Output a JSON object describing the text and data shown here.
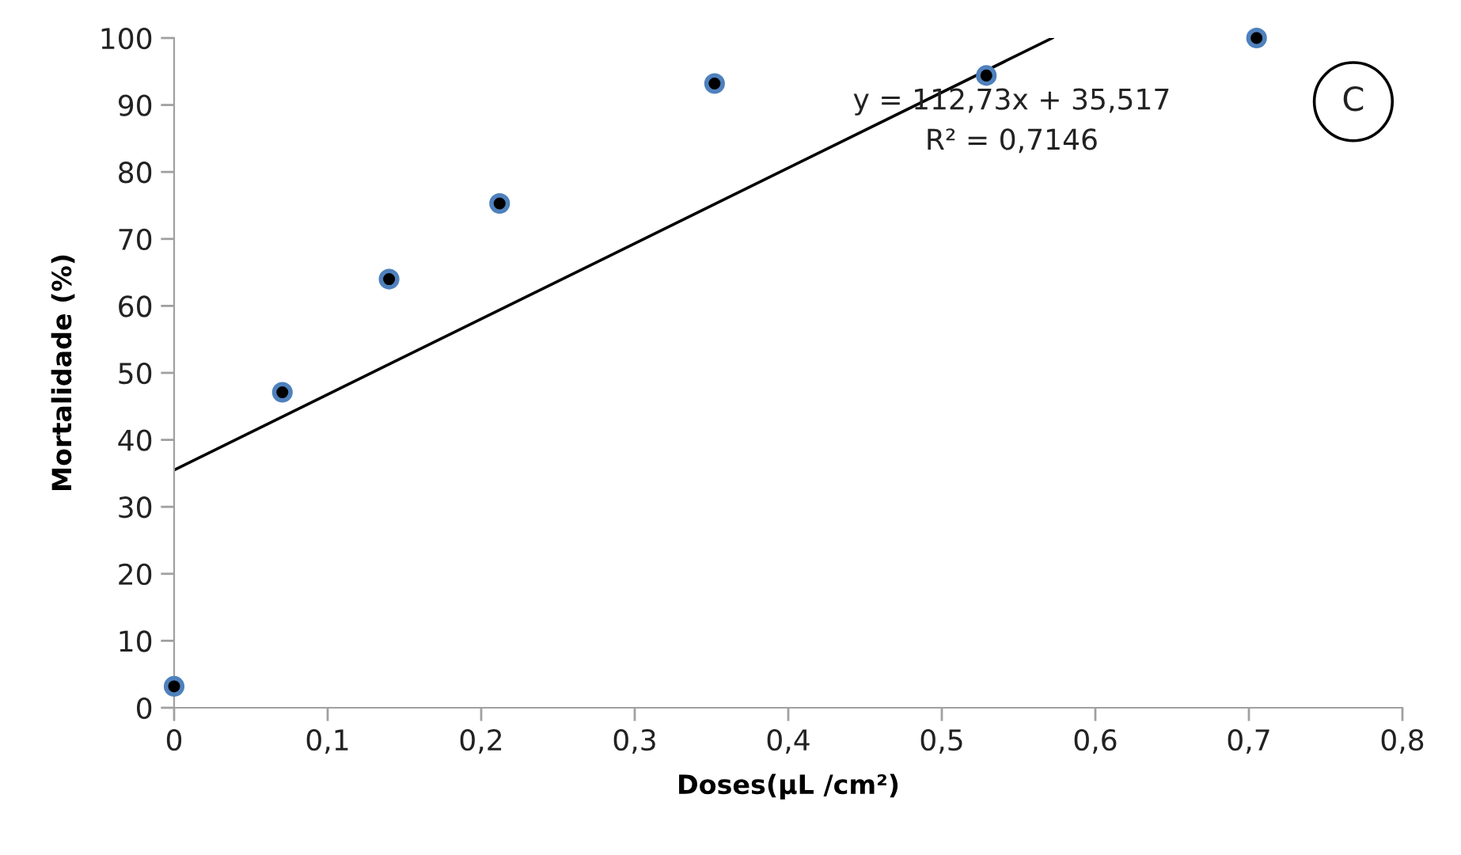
{
  "chart_data": {
    "type": "scatter",
    "xlabel": "Doses(µL /cm²)",
    "ylabel": "Mortalidade (%)",
    "x": [
      0,
      0.0705,
      0.14,
      0.212,
      0.352,
      0.529,
      0.705
    ],
    "series": [
      {
        "color": "#000000",
        "marker": "circle",
        "values": [
          3.2,
          47.1,
          64.0,
          75.3,
          93.2,
          94.4,
          100
        ]
      },
      {
        "type": "line",
        "color": "#000000",
        "marker": "none",
        "x": [
          0,
          0.572
        ],
        "values": [
          35.5,
          100
        ]
      }
    ],
    "grid": false,
    "legend": false,
    "xlim": [
      0,
      0.8
    ],
    "xticks": [
      0,
      {
        "value": 0.1,
        "label": "0,1"
      },
      {
        "value": 0.2,
        "label": "0,2"
      },
      {
        "value": 0.3,
        "label": "0,3"
      },
      {
        "value": 0.4,
        "label": "0,4"
      },
      {
        "value": 0.5,
        "label": "0,5"
      },
      {
        "value": 0.6,
        "label": "0,6"
      },
      {
        "value": 0.7,
        "label": "0,7"
      },
      {
        "value": 0.8,
        "label": "0,8"
      }
    ],
    "ylim": [
      0,
      100
    ],
    "yticks": [
      0,
      10,
      20,
      30,
      40,
      50,
      60,
      70,
      80,
      90,
      100
    ],
    "annotations": [
      "y = 112,73x + 35,517",
      "R² = 0,7146",
      "C"
    ]
  }
}
